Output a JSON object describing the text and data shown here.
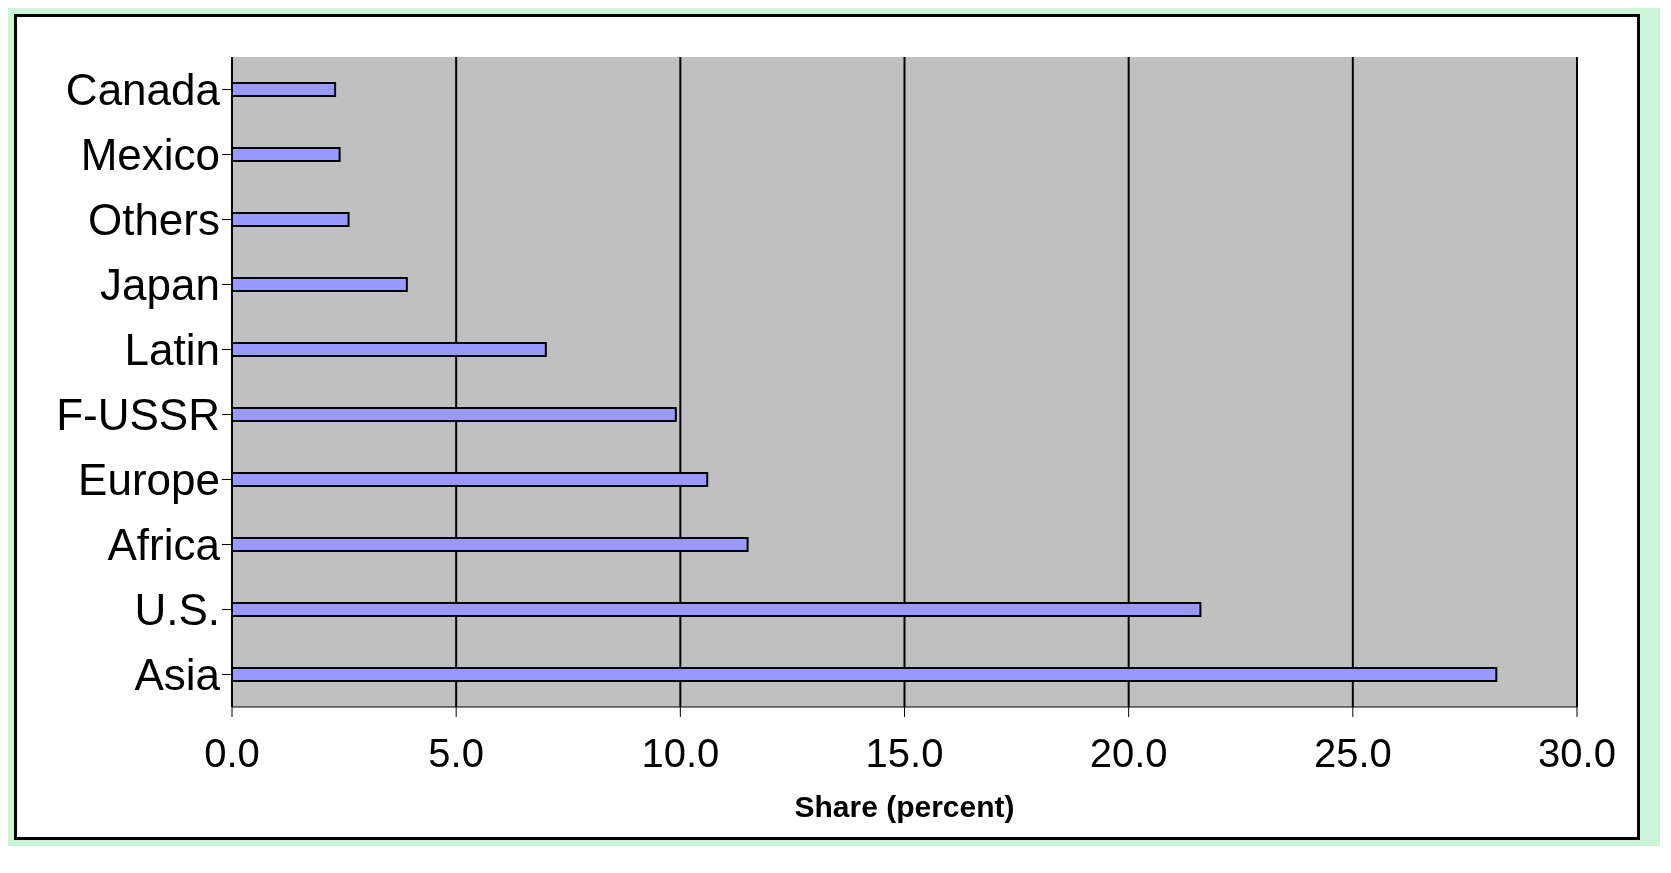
{
  "chart_data": {
    "type": "bar",
    "orientation": "horizontal",
    "xlabel": "Share (percent)",
    "categories": [
      "Canada",
      "Mexico",
      "Others",
      "Japan",
      "Latin",
      "F-USSR",
      "Europe",
      "Africa",
      "U.S.",
      "Asia"
    ],
    "values": [
      2.3,
      2.4,
      2.6,
      3.9,
      7.0,
      9.9,
      10.6,
      11.5,
      21.6,
      28.2
    ],
    "color": "#9999ff",
    "xlim": [
      0,
      30
    ],
    "xticks": [
      {
        "value": 0,
        "label": "0.0"
      },
      {
        "value": 5,
        "label": "5.0"
      },
      {
        "value": 10,
        "label": "10.0"
      },
      {
        "value": 15,
        "label": "15.0"
      },
      {
        "value": 20,
        "label": "20.0"
      },
      {
        "value": 25,
        "label": "25.0"
      },
      {
        "value": 30,
        "label": "30.0"
      }
    ],
    "grid": "x"
  }
}
